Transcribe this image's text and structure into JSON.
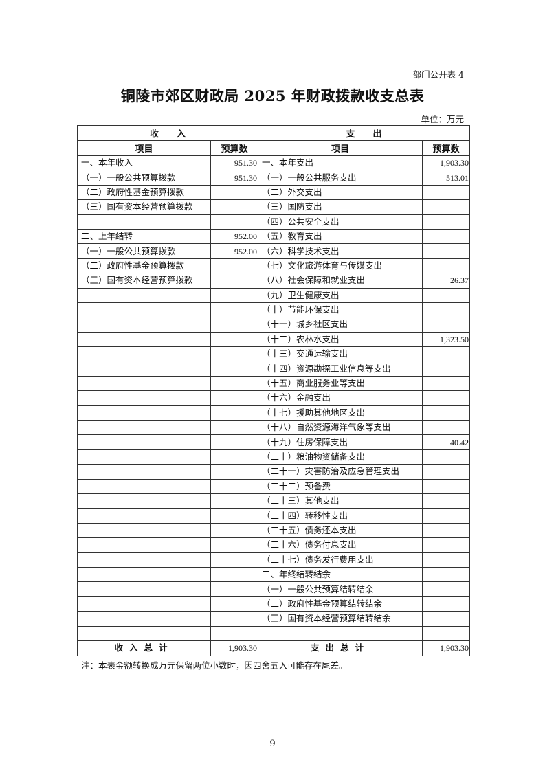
{
  "table_tag": "部门公开表 4",
  "title": "铜陵市郊区财政局 2025 年财政拨款收支总表",
  "unit": "单位：万元",
  "header": {
    "income": "收　　入",
    "expense": "支　　出",
    "item": "项目",
    "budget": "预算数"
  },
  "rows": [
    {
      "in_item": "一、本年收入",
      "in_val": "951.30",
      "ex_item": "一、本年支出",
      "ex_val": "1,903.30"
    },
    {
      "in_item": "（一）一般公共预算拨款",
      "in_val": "951.30",
      "ex_item": "（一）一般公共服务支出",
      "ex_val": "513.01"
    },
    {
      "in_item": "（二）政府性基金预算拨款",
      "in_val": "",
      "ex_item": "（二）外交支出",
      "ex_val": ""
    },
    {
      "in_item": "（三）国有资本经营预算拨款",
      "in_val": "",
      "ex_item": "（三）国防支出",
      "ex_val": ""
    },
    {
      "in_item": "",
      "in_val": "",
      "ex_item": "（四）公共安全支出",
      "ex_val": ""
    },
    {
      "in_item": "二、上年结转",
      "in_val": "952.00",
      "ex_item": "（五）教育支出",
      "ex_val": ""
    },
    {
      "in_item": "（一）一般公共预算拨款",
      "in_val": "952.00",
      "ex_item": "（六）科学技术支出",
      "ex_val": ""
    },
    {
      "in_item": "（二）政府性基金预算拨款",
      "in_val": "",
      "ex_item": "（七）文化旅游体育与传媒支出",
      "ex_val": ""
    },
    {
      "in_item": "（三）国有资本经营预算拨款",
      "in_val": "",
      "ex_item": "（八）社会保障和就业支出",
      "ex_val": "26.37"
    },
    {
      "in_item": "",
      "in_val": "",
      "ex_item": "（九）卫生健康支出",
      "ex_val": ""
    },
    {
      "in_item": "",
      "in_val": "",
      "ex_item": "（十）节能环保支出",
      "ex_val": ""
    },
    {
      "in_item": "",
      "in_val": "",
      "ex_item": "（十一）城乡社区支出",
      "ex_val": ""
    },
    {
      "in_item": "",
      "in_val": "",
      "ex_item": "（十二）农林水支出",
      "ex_val": "1,323.50"
    },
    {
      "in_item": "",
      "in_val": "",
      "ex_item": "（十三）交通运输支出",
      "ex_val": ""
    },
    {
      "in_item": "",
      "in_val": "",
      "ex_item": "（十四）资源勘探工业信息等支出",
      "ex_val": ""
    },
    {
      "in_item": "",
      "in_val": "",
      "ex_item": "（十五）商业服务业等支出",
      "ex_val": ""
    },
    {
      "in_item": "",
      "in_val": "",
      "ex_item": "（十六）金融支出",
      "ex_val": ""
    },
    {
      "in_item": "",
      "in_val": "",
      "ex_item": "（十七）援助其他地区支出",
      "ex_val": ""
    },
    {
      "in_item": "",
      "in_val": "",
      "ex_item": "（十八）自然资源海洋气象等支出",
      "ex_val": ""
    },
    {
      "in_item": "",
      "in_val": "",
      "ex_item": "（十九）住房保障支出",
      "ex_val": "40.42"
    },
    {
      "in_item": "",
      "in_val": "",
      "ex_item": "（二十）粮油物资储备支出",
      "ex_val": ""
    },
    {
      "in_item": "",
      "in_val": "",
      "ex_item": "（二十一）灾害防治及应急管理支出",
      "ex_val": ""
    },
    {
      "in_item": "",
      "in_val": "",
      "ex_item": "（二十二）预备费",
      "ex_val": ""
    },
    {
      "in_item": "",
      "in_val": "",
      "ex_item": "（二十三）其他支出",
      "ex_val": ""
    },
    {
      "in_item": "",
      "in_val": "",
      "ex_item": "（二十四）转移性支出",
      "ex_val": ""
    },
    {
      "in_item": "",
      "in_val": "",
      "ex_item": "（二十五）债务还本支出",
      "ex_val": ""
    },
    {
      "in_item": "",
      "in_val": "",
      "ex_item": "（二十六）债务付息支出",
      "ex_val": ""
    },
    {
      "in_item": "",
      "in_val": "",
      "ex_item": "（二十七）债务发行费用支出",
      "ex_val": ""
    },
    {
      "in_item": "",
      "in_val": "",
      "ex_item": "二、年终结转结余",
      "ex_val": ""
    },
    {
      "in_item": "",
      "in_val": "",
      "ex_item": "（一）一般公共预算结转结余",
      "ex_val": ""
    },
    {
      "in_item": "",
      "in_val": "",
      "ex_item": "（二）政府性基金预算结转结余",
      "ex_val": ""
    },
    {
      "in_item": "",
      "in_val": "",
      "ex_item": "（三）国有资本经营预算结转结余",
      "ex_val": ""
    },
    {
      "in_item": "",
      "in_val": "",
      "ex_item": "",
      "ex_val": ""
    }
  ],
  "totals": {
    "income_label": "收入总计",
    "income_val": "1,903.30",
    "expense_label": "支出总计",
    "expense_val": "1,903.30"
  },
  "note": "注：本表金额转换成万元保留两位小数时，因四舍五入可能存在尾差。",
  "page_number": "-9-"
}
